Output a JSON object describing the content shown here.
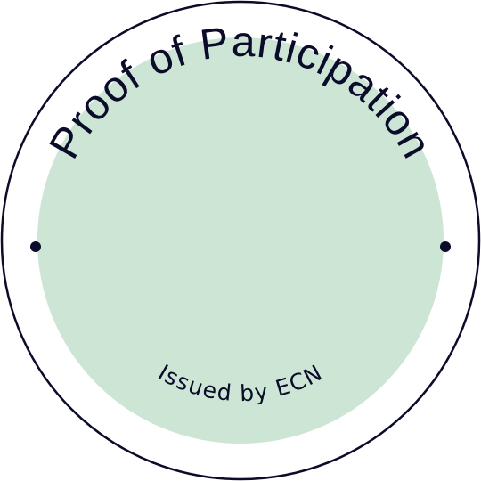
{
  "badge": {
    "title": "Proof of Participation",
    "issuer": "Issued by ECN"
  },
  "colors": {
    "background": "#ffffff",
    "ring_stroke": "#0b0b2a",
    "inner_fill": "#cde5d4",
    "text": "#0b0b2a",
    "dots": "#0b0b2a"
  }
}
